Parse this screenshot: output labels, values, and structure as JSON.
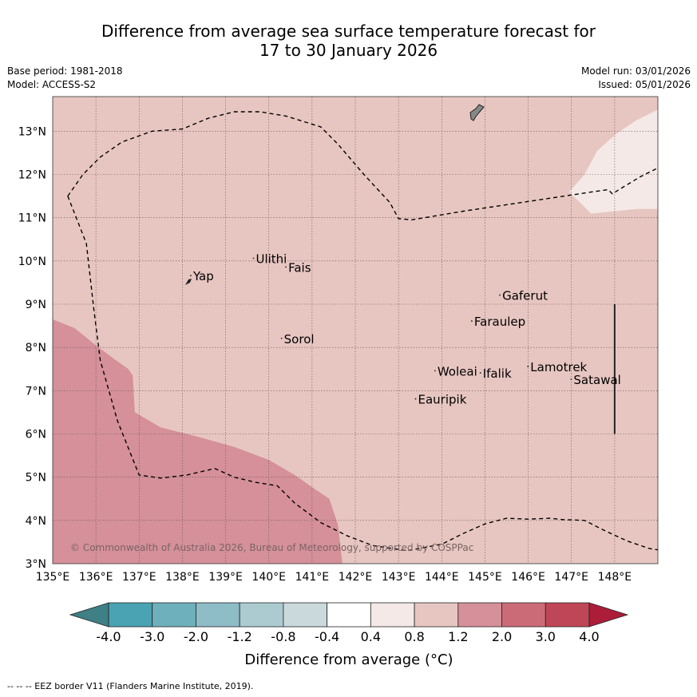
{
  "header": {
    "title_line1": "Difference from average sea surface temperature forecast for",
    "title_line2": "17 to 30 January 2026",
    "base_period": "Base period: 1981-2018",
    "model": "Model: ACCESS-S2",
    "model_run": "Model run: 03/01/2026",
    "issued": "Issued: 05/01/2026"
  },
  "chart_data": {
    "type": "heatmap",
    "title": "Difference from average sea surface temperature forecast for 17 to 30 January 2026",
    "xlim": [
      135,
      149
    ],
    "ylim": [
      3,
      13.8
    ],
    "x_ticks": [
      135,
      136,
      137,
      138,
      139,
      140,
      141,
      142,
      143,
      144,
      145,
      146,
      147,
      148
    ],
    "x_tick_labels": [
      "135°E",
      "136°E",
      "137°E",
      "138°E",
      "139°E",
      "140°E",
      "141°E",
      "142°E",
      "143°E",
      "144°E",
      "145°E",
      "146°E",
      "147°E",
      "148°E"
    ],
    "y_ticks": [
      3,
      4,
      5,
      6,
      7,
      8,
      9,
      10,
      11,
      12,
      13
    ],
    "y_tick_labels": [
      "3°N",
      "4°N",
      "5°N",
      "6°N",
      "7°N",
      "8°N",
      "9°N",
      "10°N",
      "11°N",
      "12°N",
      "13°N"
    ],
    "grid": true,
    "background_category": "0.8 to 1.2",
    "regions": [
      {
        "category": "1.2 to 2.0",
        "color": "#d5909a",
        "polygon": [
          [
            135,
            8.65
          ],
          [
            135.5,
            8.45
          ],
          [
            136.0,
            8.05
          ],
          [
            136.4,
            7.75
          ],
          [
            136.75,
            7.5
          ],
          [
            136.85,
            7.35
          ],
          [
            136.9,
            6.5
          ],
          [
            137.5,
            6.15
          ],
          [
            138.3,
            5.95
          ],
          [
            139.2,
            5.7
          ],
          [
            140.0,
            5.4
          ],
          [
            140.6,
            5.05
          ],
          [
            141.1,
            4.7
          ],
          [
            141.4,
            4.5
          ],
          [
            141.6,
            3.9
          ],
          [
            141.7,
            3.0
          ],
          [
            135,
            3.0
          ]
        ]
      },
      {
        "category": "0.4 to 0.8",
        "color": "#f4e9e6",
        "polygon": [
          [
            146.95,
            11.6
          ],
          [
            147.3,
            12.0
          ],
          [
            147.6,
            12.55
          ],
          [
            148.05,
            12.95
          ],
          [
            148.5,
            13.25
          ],
          [
            149,
            13.5
          ],
          [
            149,
            11.2
          ],
          [
            148.5,
            11.2
          ],
          [
            147.5,
            11.1
          ],
          [
            147.45,
            11.1
          ]
        ]
      }
    ],
    "eez_border": [
      [
        [
          135.35,
          11.5
        ],
        [
          135.7,
          12.0
        ],
        [
          136.1,
          12.4
        ],
        [
          136.6,
          12.75
        ],
        [
          137.3,
          13.0
        ],
        [
          138.0,
          13.05
        ],
        [
          138.6,
          13.3
        ],
        [
          139.2,
          13.45
        ],
        [
          139.8,
          13.45
        ],
        [
          140.4,
          13.35
        ],
        [
          141.2,
          13.1
        ],
        [
          141.6,
          12.7
        ],
        [
          142.2,
          12.0
        ],
        [
          142.8,
          11.35
        ],
        [
          143.0,
          10.98
        ],
        [
          143.3,
          10.95
        ],
        [
          143.6,
          11.0
        ],
        [
          144.5,
          11.15
        ],
        [
          145.5,
          11.3
        ],
        [
          146.5,
          11.45
        ],
        [
          147.5,
          11.6
        ],
        [
          147.85,
          11.65
        ],
        [
          147.95,
          11.55
        ],
        [
          148.1,
          11.65
        ],
        [
          148.6,
          11.95
        ],
        [
          149,
          12.15
        ]
      ],
      [
        [
          135.35,
          11.5
        ],
        [
          135.78,
          10.4
        ],
        [
          135.95,
          8.9
        ],
        [
          136.1,
          7.7
        ],
        [
          136.5,
          6.3
        ],
        [
          137.0,
          5.05
        ],
        [
          137.5,
          4.98
        ],
        [
          138.1,
          5.05
        ],
        [
          138.75,
          5.2
        ],
        [
          139.2,
          5.0
        ],
        [
          139.7,
          4.88
        ],
        [
          140.2,
          4.8
        ],
        [
          140.6,
          4.4
        ],
        [
          141.2,
          3.95
        ],
        [
          141.8,
          3.65
        ],
        [
          142.4,
          3.42
        ],
        [
          143.2,
          3.3
        ],
        [
          144.0,
          3.45
        ],
        [
          144.5,
          3.7
        ],
        [
          145.0,
          3.92
        ],
        [
          145.5,
          4.05
        ],
        [
          146.0,
          4.03
        ],
        [
          146.5,
          4.05
        ],
        [
          146.8,
          4.02
        ],
        [
          147.3,
          4.0
        ],
        [
          147.8,
          3.75
        ],
        [
          148.3,
          3.52
        ],
        [
          148.8,
          3.35
        ],
        [
          149,
          3.32
        ]
      ]
    ],
    "vertical_line": {
      "x": 148,
      "y_from": 6.0,
      "y_to": 9.0
    },
    "islands": [
      {
        "name": "Yap",
        "lon": 138.25,
        "lat": 9.55
      },
      {
        "name": "Ulithi",
        "lon": 139.7,
        "lat": 9.95
      },
      {
        "name": "Fais",
        "lon": 140.45,
        "lat": 9.75
      },
      {
        "name": "Gaferut",
        "lon": 145.4,
        "lat": 9.1
      },
      {
        "name": "Faraulep",
        "lon": 144.75,
        "lat": 8.5
      },
      {
        "name": "Sorol",
        "lon": 140.35,
        "lat": 8.1
      },
      {
        "name": "Woleai",
        "lon": 143.9,
        "lat": 7.35
      },
      {
        "name": "Ifalik",
        "lon": 144.95,
        "lat": 7.3
      },
      {
        "name": "Lamotrek",
        "lon": 146.05,
        "lat": 7.45
      },
      {
        "name": "Satawal",
        "lon": 147.05,
        "lat": 7.15
      },
      {
        "name": "Eauripik",
        "lon": 143.45,
        "lat": 6.7
      }
    ],
    "colorbar": {
      "label": "Difference from average (°C)",
      "tick_labels": [
        "-4.0",
        "-3.0",
        "-2.0",
        "-1.2",
        "-0.8",
        "-0.4",
        "0.4",
        "0.8",
        "1.2",
        "2.0",
        "3.0",
        "4.0"
      ],
      "bins": [
        {
          "from": "-4.0",
          "to": "-3.0",
          "color": "#4aa3b2"
        },
        {
          "from": "-3.0",
          "to": "-2.0",
          "color": "#6fb0bd"
        },
        {
          "from": "-2.0",
          "to": "-1.2",
          "color": "#8ebcc7"
        },
        {
          "from": "-1.2",
          "to": "-0.8",
          "color": "#abcbd1"
        },
        {
          "from": "-0.8",
          "to": "-0.4",
          "color": "#cad9dc"
        },
        {
          "from": "-0.4",
          "to": "0.4",
          "color": "#ffffff"
        },
        {
          "from": "0.4",
          "to": "0.8",
          "color": "#f4e9e6"
        },
        {
          "from": "0.8",
          "to": "1.2",
          "color": "#e7c6c1"
        },
        {
          "from": "1.2",
          "to": "2.0",
          "color": "#d5909a"
        },
        {
          "from": "2.0",
          "to": "3.0",
          "color": "#cc6b78"
        },
        {
          "from": "3.0",
          "to": "4.0",
          "color": "#bf4656"
        }
      ],
      "under_color": "#3f7f86",
      "over_color": "#ac1d39"
    }
  },
  "map": {
    "copyright": "© Commonwealth of Australia 2026, Bureau of Meteorology, supported by COSPPac"
  },
  "footer": {
    "eez_note": "--  --  -- EEZ border V11 (Flanders Marine Institute, 2019)."
  }
}
